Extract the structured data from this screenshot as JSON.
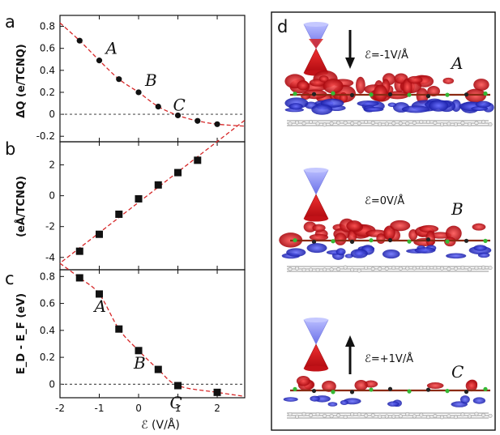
{
  "figure": {
    "x_axis_label": "ℰ (V/Å)",
    "x_ticks": [
      "-2",
      "-1",
      "0",
      "1",
      "2"
    ],
    "curve_color": "#d62728",
    "marker_color": "#111111",
    "reference_line_color": "#555555"
  },
  "chart_data": [
    {
      "panel": "a",
      "type": "scatter",
      "ylabel": "ΔQ (e/TCNQ)",
      "xlim": [
        -2,
        2.7
      ],
      "ylim": [
        -0.25,
        0.9
      ],
      "yticks": [
        "-0.2",
        "0",
        "0.2",
        "0.4",
        "0.6",
        "0.8"
      ],
      "marker": "circle",
      "x": [
        -1.5,
        -1,
        -0.5,
        0,
        0.5,
        1,
        1.5,
        2
      ],
      "values": [
        0.67,
        0.49,
        0.32,
        0.2,
        0.07,
        -0.01,
        -0.06,
        -0.09
      ],
      "fit_curve": "dashed",
      "reference_line_y": 0,
      "point_labels": [
        {
          "text": "A",
          "x": -1
        },
        {
          "text": "B",
          "x": 0
        },
        {
          "text": "C",
          "x": 1
        }
      ]
    },
    {
      "panel": "b",
      "type": "scatter",
      "ylabel": "(eÅ/TCNQ)",
      "xlim": [
        -2,
        2.7
      ],
      "ylim": [
        -4.8,
        3.5
      ],
      "yticks": [
        "-4",
        "-2",
        "0",
        "2"
      ],
      "marker": "square",
      "x": [
        -1.5,
        -1,
        -0.5,
        0,
        0.5,
        1,
        1.5,
        2
      ],
      "values": [
        -3.6,
        -2.5,
        -1.2,
        -0.2,
        0.7,
        1.5,
        2.3,
        null
      ],
      "fit_curve": "dashed-linear"
    },
    {
      "panel": "c",
      "type": "scatter",
      "ylabel": "E_D - E_F (eV)",
      "xlim": [
        -2,
        2.7
      ],
      "ylim": [
        -0.1,
        0.85
      ],
      "yticks": [
        "0",
        "0.2",
        "0.4",
        "0.6",
        "0.8"
      ],
      "marker": "square",
      "x": [
        -1.5,
        -1,
        -0.5,
        0,
        0.5,
        1,
        2
      ],
      "values": [
        0.79,
        0.67,
        0.41,
        0.25,
        0.11,
        -0.01,
        -0.06
      ],
      "fit_curve": "dashed",
      "reference_line_y": 0,
      "point_labels": [
        {
          "text": "A",
          "x": -1
        },
        {
          "text": "B",
          "x": 0
        },
        {
          "text": "C",
          "x": 1
        }
      ]
    }
  ],
  "panels": {
    "a": "a",
    "b": "b",
    "c": "c",
    "d": "d"
  },
  "panel_d": {
    "structures": [
      {
        "field_text": "ℰ=-1V/Å",
        "label": "A",
        "arrow": "down"
      },
      {
        "field_text": "ℰ=0V/Å",
        "label": "B",
        "arrow": "none"
      },
      {
        "field_text": "ℰ=+1V/Å",
        "label": "C",
        "arrow": "up"
      }
    ],
    "colors": {
      "red": "#d8232a",
      "blue": "#3a3fd0",
      "cone_blue": "#8a8ff0",
      "carbon": "#e0e0e0",
      "green": "#35b935"
    }
  }
}
